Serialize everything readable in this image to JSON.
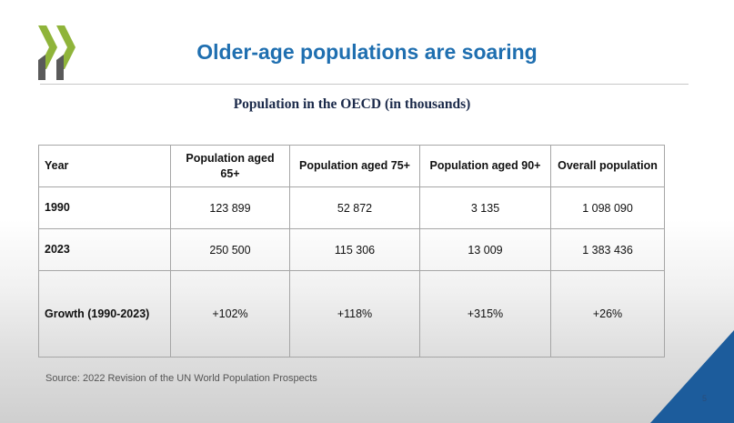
{
  "slide": {
    "title": "Older-age populations are soaring",
    "subtitle": "Population in the OECD (in thousands)",
    "source": "Source: 2022 Revision of the UN World Population Prospects",
    "page_number": "5"
  },
  "colors": {
    "title": "#1f6fb0",
    "subtitle": "#1b2a4a",
    "logo_light": "#8fb43a",
    "logo_dark": "#5a5a5a",
    "corner_triangle": "#1c5c9c"
  },
  "icons": {
    "logo": "oecd-chevrons-logo"
  },
  "table": {
    "headers": {
      "year": "Year",
      "aged65": "Population aged 65+",
      "aged75": "Population aged 75+",
      "aged90": "Population aged 90+",
      "overall": "Overall population"
    },
    "rows": [
      {
        "label": "1990",
        "aged65": "123 899",
        "aged75": "52 872",
        "aged90": "3 135",
        "overall": "1 098 090"
      },
      {
        "label": "2023",
        "aged65": "250 500",
        "aged75": "115 306",
        "aged90": "13 009",
        "overall": "1 383 436"
      }
    ],
    "growth": {
      "label": "Growth (1990-2023)",
      "aged65": "+102%",
      "aged75": "+118%",
      "aged90": "+315%",
      "overall": "+26%"
    }
  }
}
